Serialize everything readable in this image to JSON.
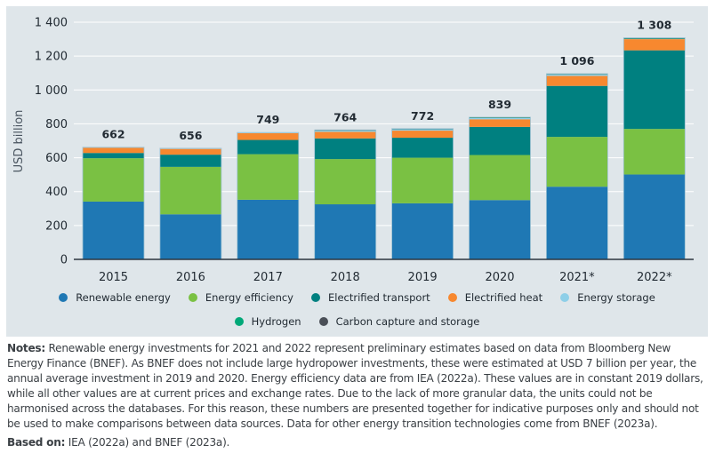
{
  "chart_data": {
    "type": "bar",
    "stacked": true,
    "title": "",
    "xlabel": "",
    "ylabel": "USD billion",
    "ylim": [
      0,
      1400
    ],
    "yticks": [
      0,
      200,
      400,
      600,
      800,
      1000,
      1200,
      1400
    ],
    "ytick_labels": [
      "0",
      "200",
      "400",
      "600",
      "800",
      "1 000",
      "1 200",
      "1 400"
    ],
    "grid": true,
    "legend_position": "bottom",
    "categories": [
      "2015",
      "2016",
      "2017",
      "2018",
      "2019",
      "2020",
      "2021*",
      "2022*"
    ],
    "totals": [
      662,
      656,
      749,
      764,
      772,
      839,
      1096,
      1308
    ],
    "total_labels": [
      "662",
      "656",
      "749",
      "764",
      "772",
      "839",
      "1 096",
      "1 308"
    ],
    "series": [
      {
        "name": "Renewable energy",
        "color": "#1f78b4",
        "values": [
          341,
          266,
          352,
          325,
          331,
          350,
          429,
          501
        ]
      },
      {
        "name": "Energy efficiency",
        "color": "#7ac143",
        "values": [
          256,
          280,
          269,
          267,
          269,
          266,
          294,
          269
        ]
      },
      {
        "name": "Electrified transport",
        "color": "#008080",
        "values": [
          31,
          72,
          84,
          122,
          118,
          166,
          301,
          464
        ]
      },
      {
        "name": "Electrified heat",
        "color": "#f7882f",
        "values": [
          32,
          34,
          40,
          39,
          42,
          45,
          59,
          66
        ]
      },
      {
        "name": "Energy storage",
        "color": "#8ecfe8",
        "values": [
          2,
          4,
          4,
          8,
          8,
          7,
          9,
          3
        ]
      },
      {
        "name": "Hydrogen",
        "color": "#00a878",
        "values": [
          0,
          0,
          0,
          2,
          3,
          4,
          3,
          1
        ]
      },
      {
        "name": "Carbon capture and storage",
        "color": "#4a4f57",
        "values": [
          0,
          0,
          0,
          1,
          1,
          1,
          1,
          4
        ]
      }
    ]
  },
  "legend": {
    "row1": [
      {
        "label": "Renewable energy",
        "color": "#1f78b4"
      },
      {
        "label": "Energy efficiency",
        "color": "#7ac143"
      },
      {
        "label": "Electrified transport",
        "color": "#008080"
      },
      {
        "label": "Electrified heat",
        "color": "#f7882f"
      },
      {
        "label": "Energy storage",
        "color": "#8ecfe8"
      }
    ],
    "row2": [
      {
        "label": "Hydrogen",
        "color": "#00a878"
      },
      {
        "label": "Carbon capture and storage",
        "color": "#4a4f57"
      }
    ]
  },
  "notes": {
    "label": "Notes:",
    "text": " Renewable energy investments for 2021 and 2022 represent preliminary estimates based on data from Bloomberg New Energy Finance (BNEF). As BNEF does not include large hydropower investments, these were estimated at USD 7 billion per year, the annual average investment in 2019 and 2020. Energy efficiency data are from IEA (2022a). These values are in constant 2019 dollars, while all other values are at current prices and exchange rates. Due to the lack of more granular data, the units could not be harmonised across the databases. For this reason, these numbers are presented together for indicative purposes only and should not be used to make comparisons between data sources. Data for other energy transition technologies come from BNEF (2023a).",
    "based_label": "Based on:",
    "based_text": " IEA (2022a) and BNEF (2023a)."
  }
}
